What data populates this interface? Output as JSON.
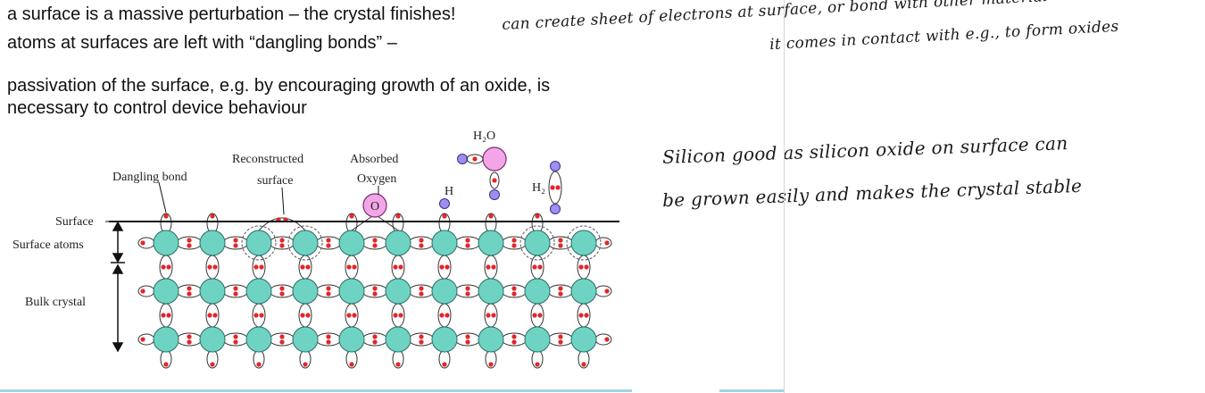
{
  "bullets": [
    "a surface is a massive perturbation – the crystal finishes!",
    "atoms at surfaces are left with “dangling bonds” –",
    "passivation of the surface, e.g. by encouraging growth of an oxide, is",
    "necessary to control device behaviour"
  ],
  "handwritten_notes": {
    "line1": "can create sheet of electrons at surface, or bond with other material",
    "line2": "it comes in contact with e.g., to form oxides",
    "line3": "Silicon good as silicon oxide on surface can",
    "line4": "be grown easily and makes the crystal stable"
  },
  "diagram": {
    "labels": {
      "dangling_bond": "Dangling bond",
      "reconstructed_1": "Reconstructed",
      "reconstructed_2": "surface",
      "absorbed_1": "Absorbed",
      "absorbed_2": "Oxygen",
      "water": "H₂O",
      "hydrogen": "H",
      "hydrogen_molecule": "H₂",
      "oxygen_atom": "O",
      "surface": "Surface",
      "surface_atoms": "Surface atoms",
      "bulk_crystal": "Bulk crystal"
    },
    "colors": {
      "atom": "#6fd3c4",
      "electron": "#e3262b",
      "oxygen": "#f2a6e8",
      "hydrogen": "#9c8ff0"
    }
  }
}
